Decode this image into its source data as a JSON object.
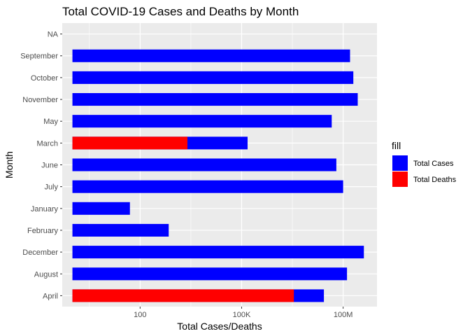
{
  "chart_data": {
    "type": "bar",
    "orientation": "horizontal",
    "title": "Total COVID-19 Cases and Deaths by Month",
    "xlabel": "Total Cases/Deaths",
    "ylabel": "Month",
    "x_scale": "log10",
    "x_base_value": 1,
    "xlim": [
      0.5,
      1000000000
    ],
    "x_ticks": [
      {
        "value": 100,
        "label": "100"
      },
      {
        "value": 100000,
        "label": "100K"
      },
      {
        "value": 100000000,
        "label": "100M"
      }
    ],
    "categories": [
      "NA",
      "September",
      "October",
      "November",
      "May",
      "March",
      "June",
      "July",
      "January",
      "February",
      "December",
      "August",
      "April"
    ],
    "series": [
      {
        "name": "Total Cases",
        "color": "#0000ff",
        "values": [
          null,
          160000000,
          200000000,
          270000000,
          46000000,
          150000,
          63000000,
          100000000,
          50,
          700,
          410000000,
          130000000,
          27000000
        ]
      },
      {
        "name": "Total Deaths",
        "color": "#ff0000",
        "values": [
          null,
          null,
          null,
          null,
          null,
          2500,
          null,
          null,
          null,
          null,
          null,
          null,
          3500000
        ]
      }
    ],
    "legend": {
      "title": "fill",
      "position": "right",
      "entries": [
        "Total Cases",
        "Total Deaths"
      ]
    },
    "grid": true,
    "panel_background": "#ebebeb",
    "grid_color": "#ffffff"
  }
}
